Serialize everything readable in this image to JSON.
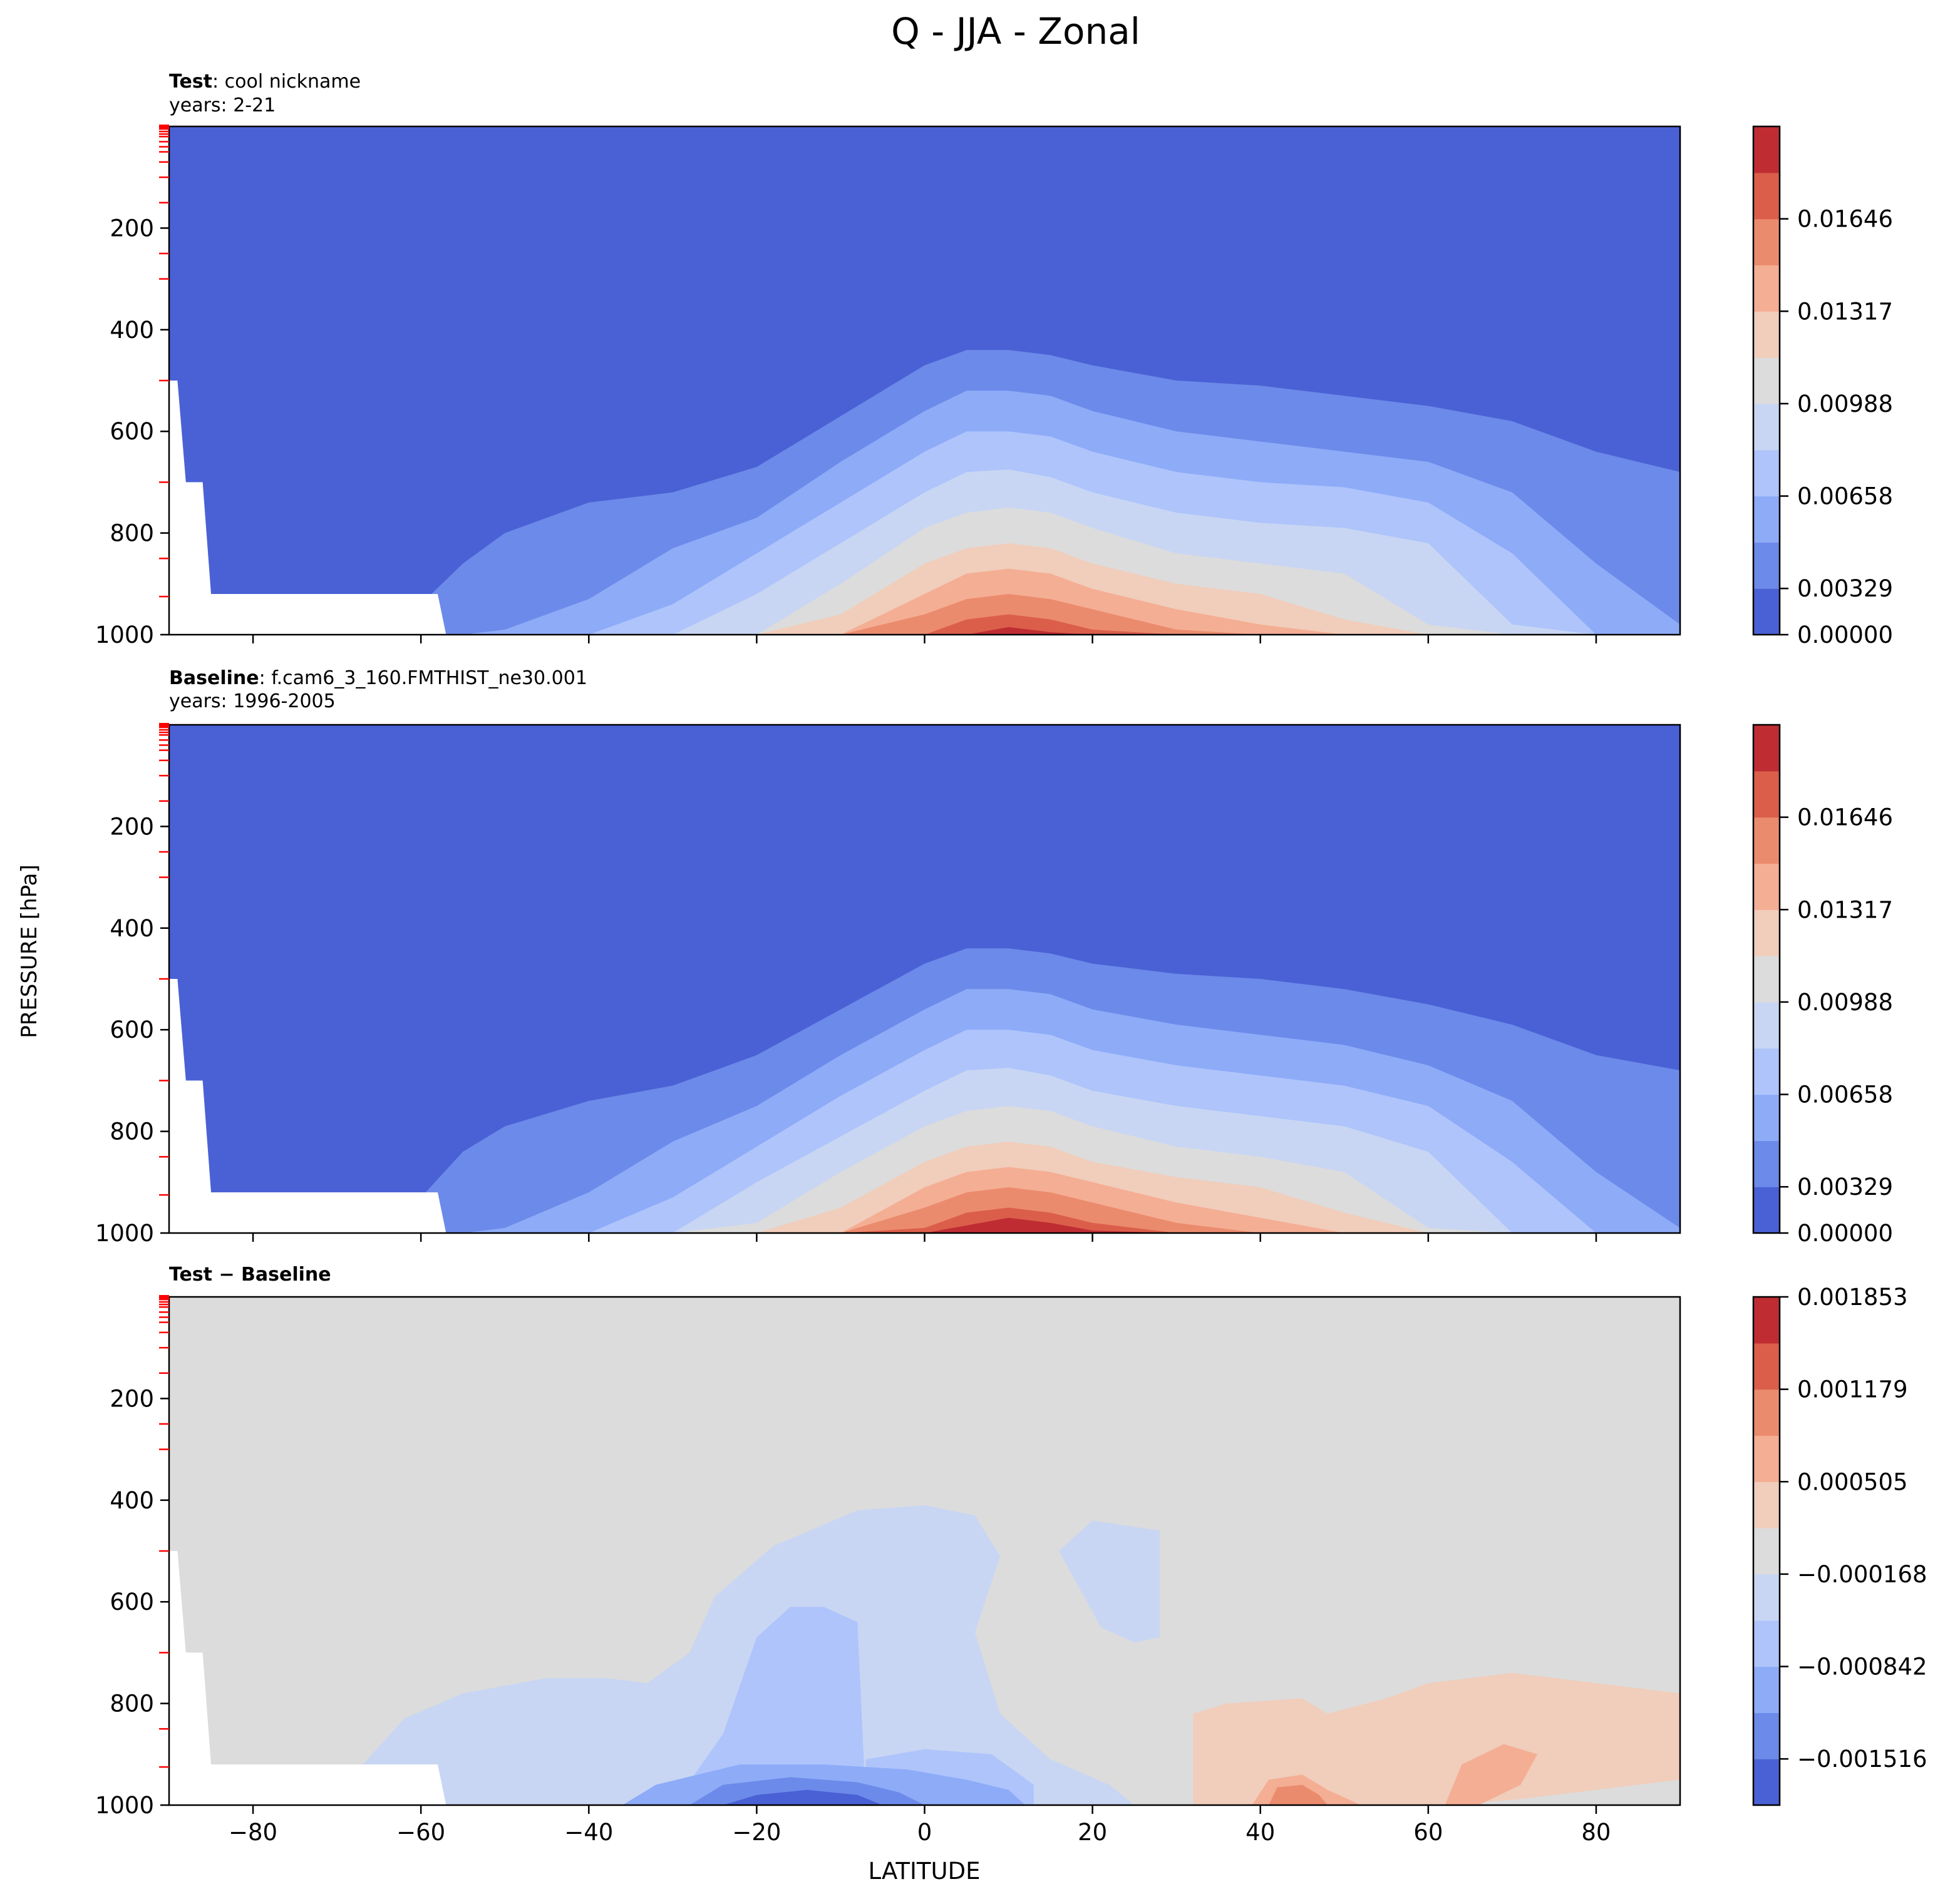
{
  "figure": {
    "title": "Q - JJA - Zonal",
    "ylabel": "PRESSURE [hPa]",
    "xlabel": "LATITUDE"
  },
  "colors": {
    "levels": [
      "#4a61d5",
      "#6c8ae9",
      "#8eabf8",
      "#aec4fb",
      "#c8d6f3",
      "#dcdcdc",
      "#f1cdbb",
      "#f4ae94",
      "#eb8b6e",
      "#db5e4b",
      "#bf2d33"
    ],
    "missing": "#ffffff",
    "axes": "#000000",
    "minor_tick": "#ff0000"
  },
  "chart_data": [
    {
      "type": "heatmap",
      "panel": "test",
      "subtitle_bold": "Test",
      "subtitle": "cool nickname",
      "years": "years: 2-21",
      "x": [
        -90,
        -80,
        -70,
        -60,
        -55,
        -50,
        -40,
        -30,
        -20,
        -10,
        0,
        5,
        10,
        15,
        20,
        30,
        40,
        50,
        60,
        70,
        80,
        90
      ],
      "xlim": [
        -90,
        90
      ],
      "xticks": [
        "−80",
        "−60",
        "−40",
        "−20",
        "0",
        "20",
        "40",
        "60",
        "80"
      ],
      "ylim": [
        1000,
        0
      ],
      "yticks": [
        "200",
        "400",
        "600",
        "800",
        "1000"
      ],
      "level_tops": [
        [
          1000,
          1000,
          1000,
          940,
          860,
          800,
          740,
          720,
          670,
          570,
          470,
          440,
          440,
          450,
          470,
          500,
          510,
          530,
          550,
          580,
          640,
          680
        ],
        [
          1000,
          1000,
          1000,
          1000,
          1000,
          990,
          930,
          830,
          770,
          660,
          560,
          520,
          520,
          530,
          560,
          600,
          620,
          640,
          660,
          720,
          860,
          980
        ],
        [
          1000,
          1000,
          1000,
          1000,
          1000,
          1000,
          1000,
          940,
          840,
          740,
          640,
          600,
          600,
          610,
          640,
          680,
          700,
          710,
          740,
          840,
          1000,
          1000
        ],
        [
          1000,
          1000,
          1000,
          1000,
          1000,
          1000,
          1000,
          1000,
          920,
          820,
          720,
          680,
          675,
          690,
          720,
          760,
          780,
          790,
          820,
          980,
          1000,
          1000
        ],
        [
          1000,
          1000,
          1000,
          1000,
          1000,
          1000,
          1000,
          1000,
          1000,
          900,
          790,
          760,
          750,
          760,
          790,
          840,
          860,
          880,
          980,
          1000,
          1000,
          1000
        ],
        [
          1000,
          1000,
          1000,
          1000,
          1000,
          1000,
          1000,
          1000,
          1000,
          960,
          860,
          830,
          820,
          830,
          860,
          900,
          920,
          970,
          1000,
          1000,
          1000,
          1000
        ],
        [
          1000,
          1000,
          1000,
          1000,
          1000,
          1000,
          1000,
          1000,
          1000,
          1000,
          920,
          880,
          870,
          880,
          910,
          950,
          980,
          1000,
          1000,
          1000,
          1000,
          1000
        ],
        [
          1000,
          1000,
          1000,
          1000,
          1000,
          1000,
          1000,
          1000,
          1000,
          1000,
          960,
          930,
          920,
          930,
          950,
          990,
          1000,
          1000,
          1000,
          1000,
          1000,
          1000
        ],
        [
          1000,
          1000,
          1000,
          1000,
          1000,
          1000,
          1000,
          1000,
          1000,
          1000,
          1000,
          970,
          960,
          970,
          990,
          1000,
          1000,
          1000,
          1000,
          1000,
          1000,
          1000
        ],
        [
          1000,
          1000,
          1000,
          1000,
          1000,
          1000,
          1000,
          1000,
          1000,
          1000,
          1000,
          1000,
          985,
          995,
          1000,
          1000,
          1000,
          1000,
          1000,
          1000,
          1000,
          1000
        ]
      ],
      "colorbar": {
        "ticks": [
          "0.01646",
          "0.01317",
          "0.00988",
          "0.00658",
          "0.00329",
          "0.00000"
        ],
        "tick_bands": [
          9,
          7,
          5,
          3,
          1,
          0
        ]
      }
    },
    {
      "type": "heatmap",
      "panel": "baseline",
      "subtitle_bold": "Baseline",
      "subtitle": "f.cam6_3_160.FMTHIST_ne30.001",
      "years": "years: 1996-2005",
      "x": [
        -90,
        -80,
        -70,
        -60,
        -55,
        -50,
        -40,
        -30,
        -20,
        -10,
        0,
        5,
        10,
        15,
        20,
        30,
        40,
        50,
        60,
        70,
        80,
        90
      ],
      "xlim": [
        -90,
        90
      ],
      "xticks": [
        "−80",
        "−60",
        "−40",
        "−20",
        "0",
        "20",
        "40",
        "60",
        "80"
      ],
      "ylim": [
        1000,
        0
      ],
      "yticks": [
        "200",
        "400",
        "600",
        "800",
        "1000"
      ],
      "level_tops": [
        [
          1000,
          1000,
          1000,
          930,
          840,
          790,
          740,
          710,
          650,
          560,
          470,
          440,
          440,
          450,
          470,
          490,
          500,
          520,
          550,
          590,
          650,
          680
        ],
        [
          1000,
          1000,
          1000,
          1000,
          1000,
          990,
          920,
          820,
          750,
          650,
          560,
          520,
          520,
          530,
          560,
          590,
          610,
          630,
          670,
          740,
          880,
          990
        ],
        [
          1000,
          1000,
          1000,
          1000,
          1000,
          1000,
          1000,
          930,
          830,
          730,
          640,
          600,
          600,
          610,
          640,
          670,
          690,
          710,
          750,
          860,
          1000,
          1000
        ],
        [
          1000,
          1000,
          1000,
          1000,
          1000,
          1000,
          1000,
          1000,
          900,
          810,
          720,
          680,
          675,
          690,
          720,
          750,
          770,
          790,
          840,
          1000,
          1000,
          1000
        ],
        [
          1000,
          1000,
          1000,
          1000,
          1000,
          1000,
          1000,
          1000,
          980,
          880,
          790,
          760,
          750,
          760,
          790,
          830,
          850,
          880,
          990,
          1000,
          1000,
          1000
        ],
        [
          1000,
          1000,
          1000,
          1000,
          1000,
          1000,
          1000,
          1000,
          1000,
          950,
          860,
          830,
          820,
          830,
          860,
          890,
          910,
          960,
          1000,
          1000,
          1000,
          1000
        ],
        [
          1000,
          1000,
          1000,
          1000,
          1000,
          1000,
          1000,
          1000,
          1000,
          1000,
          910,
          880,
          870,
          880,
          900,
          940,
          970,
          1000,
          1000,
          1000,
          1000,
          1000
        ],
        [
          1000,
          1000,
          1000,
          1000,
          1000,
          1000,
          1000,
          1000,
          1000,
          1000,
          950,
          920,
          910,
          920,
          940,
          980,
          1000,
          1000,
          1000,
          1000,
          1000,
          1000
        ],
        [
          1000,
          1000,
          1000,
          1000,
          1000,
          1000,
          1000,
          1000,
          1000,
          1000,
          990,
          960,
          950,
          960,
          980,
          1000,
          1000,
          1000,
          1000,
          1000,
          1000,
          1000
        ],
        [
          1000,
          1000,
          1000,
          1000,
          1000,
          1000,
          1000,
          1000,
          1000,
          1000,
          1000,
          985,
          970,
          980,
          995,
          1000,
          1000,
          1000,
          1000,
          1000,
          1000,
          1000
        ]
      ],
      "colorbar": {
        "ticks": [
          "0.01646",
          "0.01317",
          "0.00988",
          "0.00658",
          "0.00329",
          "0.00000"
        ],
        "tick_bands": [
          9,
          7,
          5,
          3,
          1,
          0
        ]
      }
    },
    {
      "type": "heatmap",
      "panel": "difference",
      "subtitle_bold": "Test − Baseline",
      "subtitle": "",
      "years": "",
      "xlim": [
        -90,
        90
      ],
      "xticks": [
        "−80",
        "−60",
        "−40",
        "−20",
        "0",
        "20",
        "40",
        "60",
        "80"
      ],
      "ylim": [
        1000,
        0
      ],
      "yticks": [
        "200",
        "400",
        "600",
        "800",
        "1000"
      ],
      "background_band": 5,
      "regions": [
        {
          "band": 4,
          "points": [
            [
              -72,
              1000
            ],
            [
              -68,
              940
            ],
            [
              -62,
              830
            ],
            [
              -55,
              780
            ],
            [
              -45,
              750
            ],
            [
              -38,
              750
            ],
            [
              -33,
              760
            ],
            [
              -28,
              700
            ],
            [
              -25,
              590
            ],
            [
              -18,
              490
            ],
            [
              -8,
              420
            ],
            [
              0,
              410
            ],
            [
              6,
              430
            ],
            [
              9,
              510
            ],
            [
              6,
              660
            ],
            [
              9,
              820
            ],
            [
              15,
              910
            ],
            [
              22,
              960
            ],
            [
              25,
              1000
            ]
          ]
        },
        {
          "band": 4,
          "points": [
            [
              16,
              500
            ],
            [
              20,
              440
            ],
            [
              28,
              460
            ],
            [
              28,
              670
            ],
            [
              25,
              680
            ],
            [
              21,
              650
            ]
          ]
        },
        {
          "band": 3,
          "points": [
            [
              -30,
              1000
            ],
            [
              -24,
              860
            ],
            [
              -20,
              670
            ],
            [
              -16,
              610
            ],
            [
              -12,
              610
            ],
            [
              -8,
              640
            ],
            [
              -7,
              1000
            ]
          ]
        },
        {
          "band": 3,
          "points": [
            [
              -7,
              1000
            ],
            [
              -7,
              910
            ],
            [
              0,
              890
            ],
            [
              8,
              900
            ],
            [
              13,
              960
            ],
            [
              13,
              1000
            ]
          ]
        },
        {
          "band": 2,
          "points": [
            [
              -36,
              1000
            ],
            [
              -32,
              960
            ],
            [
              -22,
              920
            ],
            [
              -12,
              920
            ],
            [
              -2,
              930
            ],
            [
              5,
              950
            ],
            [
              10,
              970
            ],
            [
              12,
              1000
            ]
          ]
        },
        {
          "band": 1,
          "points": [
            [
              -28,
              1000
            ],
            [
              -24,
              960
            ],
            [
              -16,
              945
            ],
            [
              -8,
              955
            ],
            [
              -3,
              975
            ],
            [
              0,
              1000
            ]
          ]
        },
        {
          "band": 0,
          "points": [
            [
              -24,
              1000
            ],
            [
              -20,
              980
            ],
            [
              -14,
              970
            ],
            [
              -8,
              980
            ],
            [
              -5,
              1000
            ]
          ]
        },
        {
          "band": 6,
          "points": [
            [
              32,
              1000
            ],
            [
              32,
              820
            ],
            [
              36,
              800
            ],
            [
              45,
              790
            ],
            [
              48,
              820
            ],
            [
              55,
              790
            ],
            [
              60,
              760
            ],
            [
              70,
              740
            ],
            [
              80,
              760
            ],
            [
              90,
              780
            ],
            [
              90,
              950
            ],
            [
              70,
              990
            ],
            [
              60,
              1000
            ]
          ]
        },
        {
          "band": 7,
          "points": [
            [
              39,
              1000
            ],
            [
              41,
              950
            ],
            [
              45,
              940
            ],
            [
              48,
              970
            ],
            [
              52,
              1000
            ]
          ]
        },
        {
          "band": 7,
          "points": [
            [
              62,
              1000
            ],
            [
              64,
              920
            ],
            [
              69,
              880
            ],
            [
              73,
              900
            ],
            [
              71,
              960
            ],
            [
              66,
              1000
            ]
          ]
        },
        {
          "band": 8,
          "points": [
            [
              41,
              1000
            ],
            [
              42,
              965
            ],
            [
              45,
              960
            ],
            [
              47,
              980
            ],
            [
              48,
              1000
            ]
          ]
        }
      ],
      "colorbar": {
        "ticks": [
          "0.001853",
          "0.001179",
          "0.000505",
          "−0.000168",
          "−0.000842",
          "−0.001516"
        ],
        "tick_bands": [
          11,
          9,
          7,
          5,
          3,
          1
        ]
      }
    }
  ]
}
